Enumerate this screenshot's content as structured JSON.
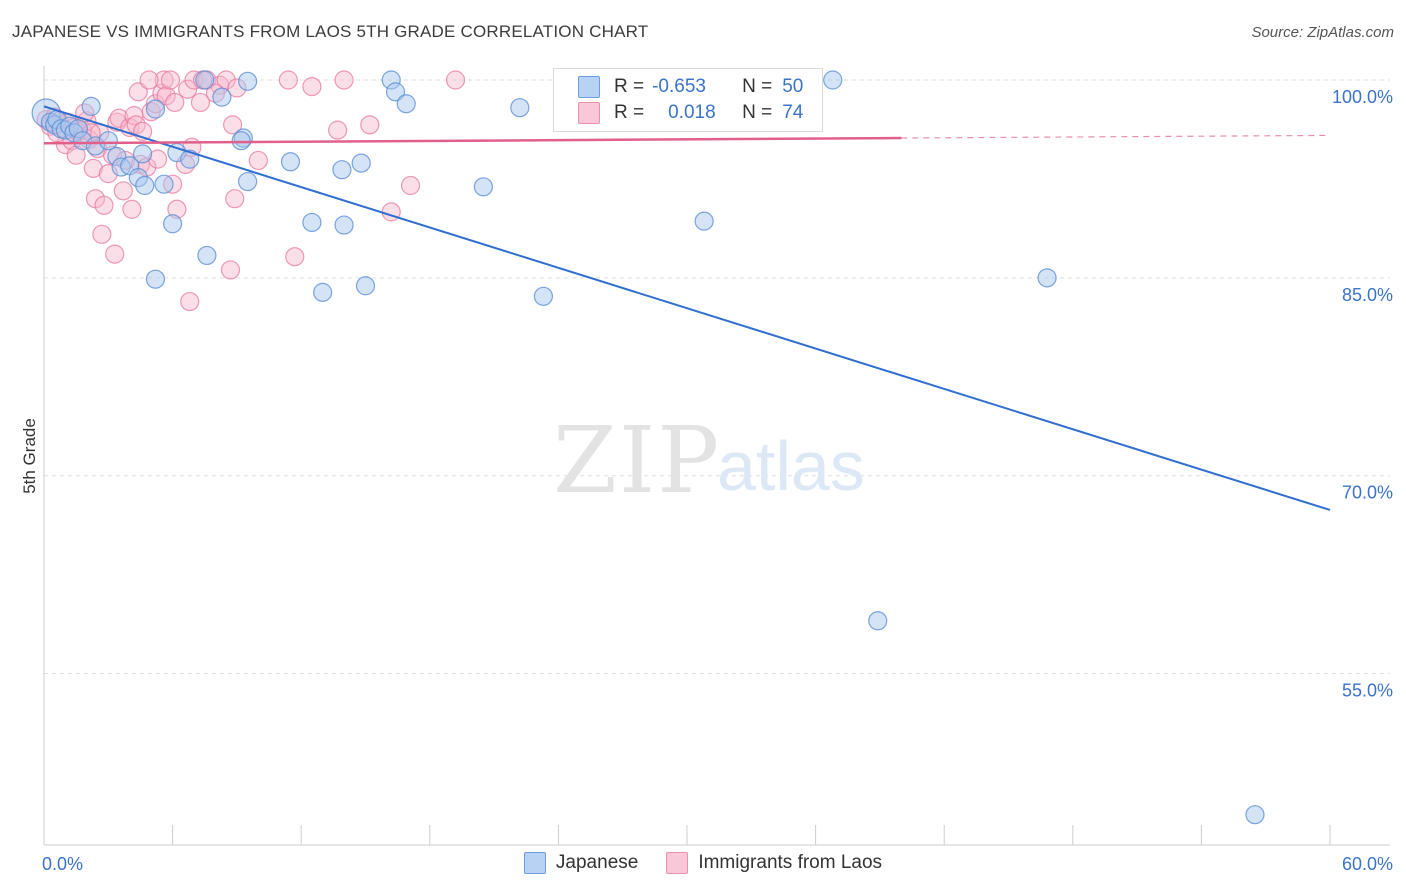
{
  "header": {
    "title": "JAPANESE VS IMMIGRANTS FROM LAOS 5TH GRADE CORRELATION CHART",
    "source": "Source: ZipAtlas.com"
  },
  "watermark": {
    "zip": "ZIP",
    "atlas": "atlas"
  },
  "legend": {
    "rows": [
      {
        "r_label": "R =",
        "r_value": "-0.653",
        "n_label": "N =",
        "n_value": "50"
      },
      {
        "r_label": "R =",
        "r_value": "0.018",
        "n_label": "N =",
        "n_value": "74"
      }
    ],
    "series": [
      "Japanese",
      "Immigrants from Laos"
    ]
  },
  "colors": {
    "japanese_fill": "#a9c8ee",
    "japanese_stroke": "#5b8fd6",
    "japanese_line": "#2f6fcf",
    "laos_fill": "#f6b9cd",
    "laos_stroke": "#e8789d",
    "laos_line": "#e0608a",
    "tick_blue": "#3b73c9"
  },
  "chart_data": {
    "type": "scatter",
    "title": "JAPANESE VS IMMIGRANTS FROM LAOS 5TH GRADE CORRELATION CHART",
    "xlabel": "",
    "ylabel": "5th Grade",
    "xlim": [
      0,
      60
    ],
    "ylim": [
      42,
      101.5
    ],
    "x_tick_labels": [
      "0.0%",
      "60.0%"
    ],
    "y_ticks": [
      100,
      85,
      70,
      55
    ],
    "y_tick_labels": [
      "100.0%",
      "85.0%",
      "70.0%",
      "55.0%"
    ],
    "grid": true,
    "series": [
      {
        "name": "Japanese",
        "r": -0.653,
        "n": 50,
        "trend": {
          "x": [
            0,
            60
          ],
          "y": [
            98.0,
            67.4
          ]
        },
        "points": [
          [
            0.1,
            97.5
          ],
          [
            0.3,
            96.8
          ],
          [
            0.5,
            96.6
          ],
          [
            0.6,
            97.0
          ],
          [
            0.8,
            96.3
          ],
          [
            1.0,
            96.2
          ],
          [
            1.2,
            96.5
          ],
          [
            1.4,
            96.0
          ],
          [
            1.6,
            96.3
          ],
          [
            1.8,
            95.4
          ],
          [
            2.2,
            98.0
          ],
          [
            2.4,
            95.0
          ],
          [
            3.0,
            95.4
          ],
          [
            3.4,
            94.2
          ],
          [
            3.6,
            93.4
          ],
          [
            4.0,
            93.5
          ],
          [
            4.4,
            92.6
          ],
          [
            4.7,
            92.0
          ],
          [
            4.6,
            94.4
          ],
          [
            5.2,
            97.8
          ],
          [
            5.6,
            92.1
          ],
          [
            6.2,
            94.5
          ],
          [
            6.8,
            94.0
          ],
          [
            6.0,
            89.1
          ],
          [
            5.2,
            84.9
          ],
          [
            7.6,
            86.7
          ],
          [
            7.5,
            100.0
          ],
          [
            8.3,
            98.7
          ],
          [
            9.3,
            95.6
          ],
          [
            9.2,
            95.4
          ],
          [
            9.5,
            92.3
          ],
          [
            9.5,
            99.9
          ],
          [
            11.5,
            93.8
          ],
          [
            12.5,
            89.2
          ],
          [
            13.0,
            83.9
          ],
          [
            13.9,
            93.2
          ],
          [
            14.0,
            89.0
          ],
          [
            14.8,
            93.7
          ],
          [
            15.0,
            84.4
          ],
          [
            16.2,
            100.0
          ],
          [
            16.4,
            99.1
          ],
          [
            16.9,
            98.2
          ],
          [
            20.5,
            91.9
          ],
          [
            22.2,
            97.9
          ],
          [
            23.3,
            83.6
          ],
          [
            36.8,
            100.0
          ],
          [
            30.8,
            89.3
          ],
          [
            46.8,
            85.0
          ],
          [
            38.9,
            59.0
          ],
          [
            56.5,
            44.3
          ]
        ]
      },
      {
        "name": "Immigrants from Laos",
        "r": 0.018,
        "n": 74,
        "trend": {
          "x": [
            0,
            40
          ],
          "y": [
            95.2,
            95.6
          ]
        },
        "trend_dashed": {
          "x": [
            40,
            60
          ],
          "y": [
            95.6,
            95.8
          ]
        },
        "points": [
          [
            0.1,
            97.0
          ],
          [
            0.3,
            96.5
          ],
          [
            0.5,
            97.2
          ],
          [
            0.7,
            96.9
          ],
          [
            0.9,
            96.3
          ],
          [
            1.0,
            95.1
          ],
          [
            1.1,
            96.8
          ],
          [
            1.3,
            95.4
          ],
          [
            1.4,
            96.4
          ],
          [
            1.5,
            94.3
          ],
          [
            1.6,
            96.1
          ],
          [
            1.8,
            96.2
          ],
          [
            2.0,
            96.9
          ],
          [
            2.1,
            95.5
          ],
          [
            2.3,
            93.3
          ],
          [
            2.5,
            94.8
          ],
          [
            2.4,
            91.0
          ],
          [
            2.6,
            96.0
          ],
          [
            2.7,
            88.3
          ],
          [
            2.8,
            90.5
          ],
          [
            3.0,
            92.9
          ],
          [
            3.2,
            94.3
          ],
          [
            3.4,
            96.8
          ],
          [
            3.5,
            97.1
          ],
          [
            3.3,
            86.8
          ],
          [
            3.7,
            91.6
          ],
          [
            3.8,
            93.9
          ],
          [
            4.0,
            96.4
          ],
          [
            4.1,
            90.2
          ],
          [
            4.2,
            97.3
          ],
          [
            4.3,
            96.6
          ],
          [
            4.4,
            99.1
          ],
          [
            4.5,
            93.6
          ],
          [
            4.6,
            96.1
          ],
          [
            4.8,
            93.4
          ],
          [
            5.0,
            97.6
          ],
          [
            5.2,
            98.2
          ],
          [
            5.3,
            94.0
          ],
          [
            5.5,
            99.0
          ],
          [
            5.6,
            100.0
          ],
          [
            5.7,
            98.8
          ],
          [
            6.0,
            92.1
          ],
          [
            6.1,
            98.3
          ],
          [
            6.2,
            90.2
          ],
          [
            6.6,
            93.6
          ],
          [
            6.7,
            99.3
          ],
          [
            6.8,
            83.2
          ],
          [
            6.9,
            94.9
          ],
          [
            7.0,
            100.0
          ],
          [
            7.3,
            98.3
          ],
          [
            7.4,
            100.0
          ],
          [
            7.6,
            100.0
          ],
          [
            8.2,
            99.6
          ],
          [
            8.5,
            100.0
          ],
          [
            8.7,
            85.6
          ],
          [
            8.8,
            96.6
          ],
          [
            8.9,
            91.0
          ],
          [
            9.0,
            99.4
          ],
          [
            10.0,
            93.9
          ],
          [
            11.4,
            100.0
          ],
          [
            11.7,
            86.6
          ],
          [
            12.5,
            99.5
          ],
          [
            13.7,
            96.2
          ],
          [
            14.0,
            100.0
          ],
          [
            15.2,
            96.6
          ],
          [
            16.2,
            90.0
          ],
          [
            17.1,
            92.0
          ],
          [
            19.2,
            100.0
          ],
          [
            4.9,
            100.0
          ],
          [
            5.9,
            100.0
          ],
          [
            1.9,
            97.5
          ],
          [
            2.2,
            96.0
          ],
          [
            8.0,
            99.0
          ],
          [
            0.6,
            96.0
          ]
        ]
      }
    ]
  }
}
